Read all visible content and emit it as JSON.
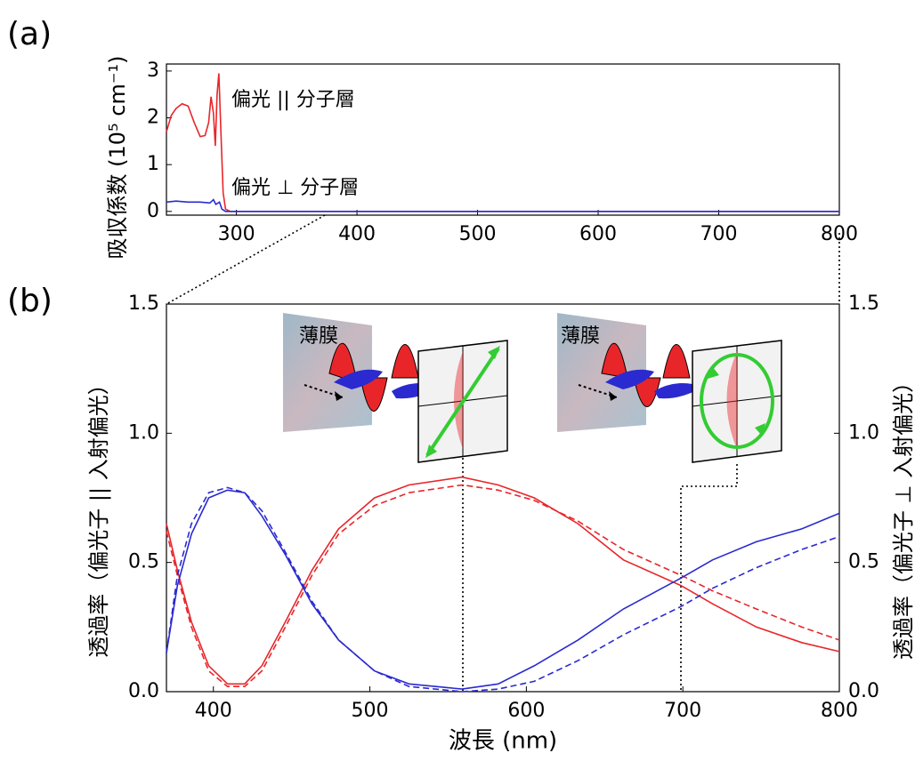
{
  "chart_data": [
    {
      "type": "line",
      "panel_label": "(a)",
      "ylabel": "吸収係数 (10⁵ cm⁻¹)",
      "xlim": [
        242,
        800
      ],
      "ylim": [
        -0.08,
        3.15
      ],
      "xticks": [
        300,
        400,
        500,
        600,
        700,
        800
      ],
      "yticks": [
        0,
        1,
        2,
        3
      ],
      "series": [
        {
          "name": "偏光 || 分子層",
          "color": "#e8262a",
          "x": [
            242,
            246,
            250,
            255,
            260,
            265,
            270,
            274,
            277,
            279,
            281,
            282.5,
            284,
            285.5,
            287,
            289,
            291,
            295,
            800
          ],
          "values": [
            1.7,
            2.05,
            2.2,
            2.3,
            2.25,
            1.9,
            1.6,
            1.62,
            1.9,
            2.45,
            2.1,
            1.4,
            2.5,
            2.95,
            1.8,
            0.4,
            0.05,
            0,
            0
          ]
        },
        {
          "name": "偏光 ⊥ 分子層",
          "color": "#2a2ad0",
          "x": [
            242,
            250,
            260,
            270,
            278,
            281,
            283,
            286,
            288,
            291,
            800
          ],
          "values": [
            0.2,
            0.22,
            0.2,
            0.2,
            0.18,
            0.25,
            0.15,
            0.2,
            0.05,
            0,
            0
          ]
        }
      ]
    },
    {
      "type": "line",
      "panel_label": "(b)",
      "xlabel": "波長 (nm)",
      "ylabel": "透過率（偏光子 || 入射偏光）",
      "y2label": "透過率（偏光子 ⊥ 入射偏光）",
      "axis_colors": {
        "y": "#e8262a",
        "y2": "#2a2ad0"
      },
      "annotations": [
        "薄膜",
        "薄膜"
      ],
      "xlim": [
        370,
        800
      ],
      "ylim": [
        0,
        1.5
      ],
      "y2lim": [
        0,
        1.5
      ],
      "xticks": [
        400,
        500,
        600,
        700,
        800
      ],
      "yticks": [
        {
          "value": 0,
          "label": "0.0"
        },
        0.5,
        {
          "value": 1,
          "label": "1.0"
        },
        1.5
      ],
      "y2ticks": [
        {
          "value": 0,
          "label": "0.0"
        },
        0.5,
        {
          "value": 1,
          "label": "1.0"
        },
        1.5
      ],
      "series": [
        {
          "color": "#e8262a",
          "dashed": false,
          "x": [
            370,
            377,
            386,
            397,
            409,
            420,
            431,
            446,
            463,
            480,
            503,
            525,
            559,
            582,
            605,
            633,
            662,
            699,
            719,
            747,
            776,
            800
          ],
          "values": [
            0.65,
            0.47,
            0.27,
            0.1,
            0.03,
            0.03,
            0.1,
            0.27,
            0.47,
            0.63,
            0.75,
            0.8,
            0.83,
            0.8,
            0.75,
            0.65,
            0.51,
            0.41,
            0.34,
            0.25,
            0.19,
            0.155
          ]
        },
        {
          "color": "#e8262a",
          "dashed": true,
          "x": [
            370,
            377,
            386,
            397,
            409,
            420,
            431,
            446,
            463,
            480,
            503,
            525,
            559,
            582,
            605,
            633,
            662,
            699,
            719,
            747,
            776,
            800
          ],
          "values": [
            0.62,
            0.45,
            0.25,
            0.08,
            0.02,
            0.02,
            0.08,
            0.25,
            0.45,
            0.61,
            0.72,
            0.77,
            0.8,
            0.78,
            0.74,
            0.66,
            0.55,
            0.45,
            0.39,
            0.32,
            0.25,
            0.2
          ]
        },
        {
          "color": "#2a2ad0",
          "dashed": false,
          "axis": "y2",
          "x": [
            370,
            377,
            386,
            397,
            409,
            420,
            431,
            446,
            463,
            480,
            503,
            525,
            559,
            582,
            605,
            633,
            662,
            699,
            719,
            747,
            776,
            800
          ],
          "values": [
            0.15,
            0.41,
            0.61,
            0.75,
            0.78,
            0.77,
            0.68,
            0.53,
            0.34,
            0.2,
            0.08,
            0.03,
            0.01,
            0.03,
            0.1,
            0.2,
            0.32,
            0.44,
            0.51,
            0.58,
            0.63,
            0.69
          ]
        },
        {
          "color": "#2a2ad0",
          "dashed": true,
          "axis": "y2",
          "x": [
            370,
            377,
            386,
            397,
            409,
            420,
            431,
            446,
            463,
            480,
            503,
            525,
            559,
            582,
            605,
            633,
            662,
            699,
            719,
            747,
            776,
            800
          ],
          "values": [
            0.15,
            0.45,
            0.65,
            0.77,
            0.79,
            0.77,
            0.7,
            0.54,
            0.35,
            0.2,
            0.08,
            0.02,
            0,
            0.01,
            0.04,
            0.12,
            0.22,
            0.33,
            0.4,
            0.48,
            0.55,
            0.6
          ]
        }
      ]
    }
  ]
}
